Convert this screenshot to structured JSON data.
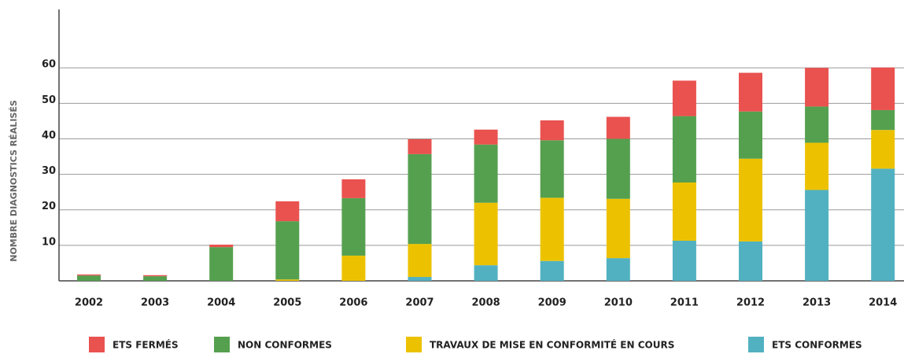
{
  "chart_data": {
    "type": "stacked_bar",
    "y_label": "NOMBRE DIAGNOSTICS RÉALISÉS",
    "categories": [
      "2002",
      "2003",
      "2004",
      "2005",
      "2006",
      "2007",
      "2008",
      "2009",
      "2010",
      "2011",
      "2012",
      "2013",
      "2014"
    ],
    "series": [
      {
        "name": "ETS FERMÉS",
        "color": "#e9524f",
        "values": [
          0.3,
          0.3,
          0.7,
          5.6,
          5.3,
          4.2,
          4.2,
          5.6,
          6.2,
          10,
          10.9,
          10.9,
          12
        ]
      },
      {
        "name": "NON CONFORMES",
        "color": "#55a04f",
        "values": [
          1.5,
          1.3,
          9.5,
          16.4,
          16.2,
          25.3,
          16.4,
          16.2,
          16.9,
          18.7,
          13.3,
          10.2,
          5.6
        ]
      },
      {
        "name": "TRAVAUX DE MISE EN CONFORMITÉ EN COURS",
        "color": "#ecc200",
        "values": [
          0,
          0,
          0,
          0.4,
          7.1,
          9.3,
          17.6,
          17.8,
          16.7,
          16.4,
          23.3,
          13.3,
          10.9
        ]
      },
      {
        "name": "ETS CONFORMES",
        "color": "#52b1c1",
        "values": [
          0,
          0,
          0,
          0,
          0,
          1.1,
          4.4,
          5.6,
          6.4,
          11.3,
          11.1,
          25.6,
          31.6
        ]
      }
    ],
    "ylim": [
      0,
      78
    ],
    "yticks": [
      10,
      20,
      30,
      40,
      50,
      60
    ],
    "grid": true
  }
}
